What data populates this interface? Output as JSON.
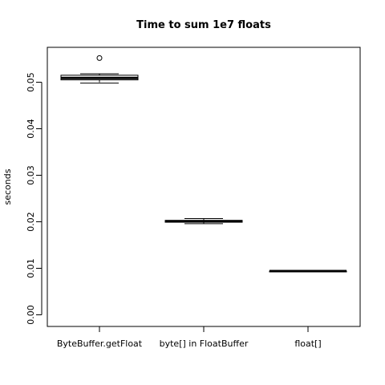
{
  "chart_data": {
    "type": "boxplot",
    "title": "Time to sum 1e7 floats",
    "xlabel": "",
    "ylabel": "seconds",
    "ylim": [
      -0.0025,
      0.0575
    ],
    "y_ticks": [
      0.0,
      0.01,
      0.02,
      0.03,
      0.04,
      0.05
    ],
    "y_tick_labels": [
      "0.00",
      "0.01",
      "0.02",
      "0.03",
      "0.04",
      "0.05"
    ],
    "grid": false,
    "categories": [
      "ByteBuffer.getFloat",
      "byte[] in FloatBuffer",
      "float[]"
    ],
    "boxes": [
      {
        "category": "ByteBuffer.getFloat",
        "whisker_low": 0.0498,
        "q1": 0.0505,
        "median": 0.0509,
        "q3": 0.0515,
        "whisker_high": 0.0518,
        "outliers": [
          0.0552
        ]
      },
      {
        "category": "byte[] in FloatBuffer",
        "whisker_low": 0.0196,
        "q1": 0.0199,
        "median": 0.0201,
        "q3": 0.0203,
        "whisker_high": 0.0207,
        "outliers": []
      },
      {
        "category": "float[]",
        "whisker_low": 0.0093,
        "q1": 0.0093,
        "median": 0.0094,
        "q3": 0.0094,
        "whisker_high": 0.0094,
        "outliers": []
      }
    ]
  }
}
